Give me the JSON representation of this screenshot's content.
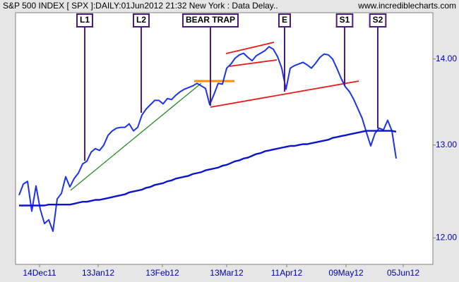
{
  "chart_data": {
    "type": "line",
    "title": "S&P 500 INDEX [ SPX ]:DAILY:01Jun2012 21:32 New York : Data Delay..",
    "source": "www.incrediblecharts.com",
    "xlim": [
      -0.83,
      97.67
    ],
    "xticks": [
      {
        "value": 4.83,
        "label": "14Dec11"
      },
      {
        "value": 18.67,
        "label": "13Jan12"
      },
      {
        "value": 33.83,
        "label": "13Feb12"
      },
      {
        "value": 49,
        "label": "13Mar12"
      },
      {
        "value": 63.17,
        "label": "11Apr12"
      },
      {
        "value": 77.17,
        "label": "09May12"
      },
      {
        "value": 90.67,
        "label": "05Jun12"
      }
    ],
    "ylim": [
      11.73,
      14.57
    ],
    "log_scale": true,
    "yticks": [
      {
        "value": 12,
        "label": "12.00"
      },
      {
        "value": 13,
        "label": "13.00"
      },
      {
        "value": 14,
        "label": "14.00"
      }
    ],
    "grid": false,
    "series": [
      {
        "color": "#1e32e6",
        "values": [
          12.45,
          12.57,
          12.6,
          12.28,
          12.55,
          12.3,
          12.15,
          12.19,
          12.07,
          12.41,
          12.47,
          12.65,
          12.54,
          12.63,
          12.69,
          12.79,
          12.82,
          12.92,
          12.96,
          12.94,
          13.0,
          13.11,
          13.16,
          13.19,
          13.2,
          13.2,
          13.24,
          13.16,
          13.2,
          13.34,
          13.41,
          13.46,
          13.51,
          13.51,
          13.47,
          13.53,
          13.52,
          13.57,
          13.61,
          13.64,
          13.66,
          13.68,
          13.71,
          13.68,
          13.65,
          13.46,
          13.58,
          13.71,
          13.7,
          13.89,
          13.94,
          14.01,
          14.05,
          14.07,
          14.02,
          13.98,
          14.04,
          14.07,
          14.1,
          14.15,
          14.12,
          14.03,
          13.89,
          13.64,
          13.89,
          13.92,
          13.94,
          13.96,
          13.93,
          13.89,
          13.95,
          14.02,
          14.06,
          14.05,
          14.0,
          13.89,
          13.77,
          13.67,
          13.61,
          13.52,
          13.41,
          13.3,
          13.14,
          12.99,
          13.13,
          13.19,
          13.17,
          13.28,
          13.16,
          12.85
        ]
      },
      {
        "color": "#0a14c8",
        "values": [
          12.34,
          12.34,
          12.34,
          12.34,
          12.34,
          12.34,
          12.34,
          12.35,
          12.35,
          12.35,
          12.35,
          12.35,
          12.35,
          12.36,
          12.37,
          12.38,
          12.38,
          12.39,
          12.4,
          12.4,
          12.41,
          12.42,
          12.43,
          12.44,
          12.45,
          12.46,
          12.48,
          12.49,
          12.5,
          12.51,
          12.53,
          12.54,
          12.56,
          12.57,
          12.58,
          12.6,
          12.61,
          12.63,
          12.64,
          12.65,
          12.66,
          12.68,
          12.69,
          12.7,
          12.72,
          12.73,
          12.74,
          12.75,
          12.77,
          12.78,
          12.8,
          12.82,
          12.83,
          12.85,
          12.86,
          12.88,
          12.9,
          12.91,
          12.93,
          12.94,
          12.95,
          12.96,
          12.97,
          12.98,
          12.99,
          12.99,
          13.0,
          13.01,
          13.01,
          13.02,
          13.03,
          13.04,
          13.05,
          13.06,
          13.08,
          13.09,
          13.1,
          13.11,
          13.12,
          13.13,
          13.14,
          13.15,
          13.16,
          13.16,
          13.16,
          13.16,
          13.16,
          13.16,
          13.16,
          13.15
        ]
      }
    ],
    "annotations": [
      "L1",
      "L2",
      "BEAR TRAP",
      "E",
      "S1",
      "S2"
    ]
  }
}
